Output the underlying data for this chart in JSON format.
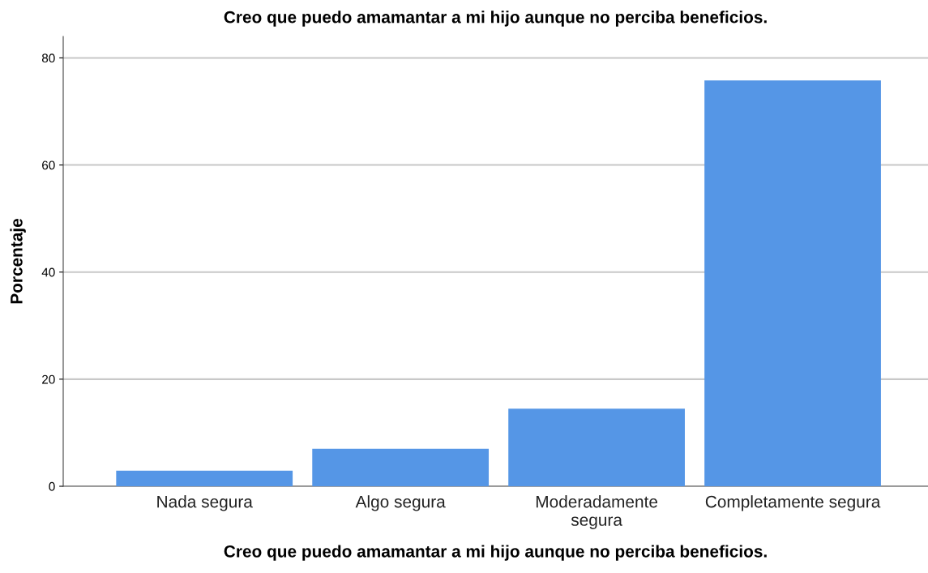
{
  "chart_data": {
    "type": "bar",
    "title": "Creo que puedo amamantar a mi hijo aunque no perciba beneficios.",
    "xlabel": "Creo que puedo amamantar a mi hijo aunque no perciba beneficios.",
    "ylabel": "Porcentaje",
    "categories": [
      "Nada segura",
      "Algo segura",
      "Moderadamente\nsegura",
      "Completamente segura"
    ],
    "values": [
      2.9,
      7.0,
      14.5,
      75.8
    ],
    "color": "#5596e6",
    "ylim": [
      0,
      84
    ],
    "yticks": [
      0,
      20,
      40,
      60,
      80
    ],
    "grid": "y",
    "legend": false
  }
}
